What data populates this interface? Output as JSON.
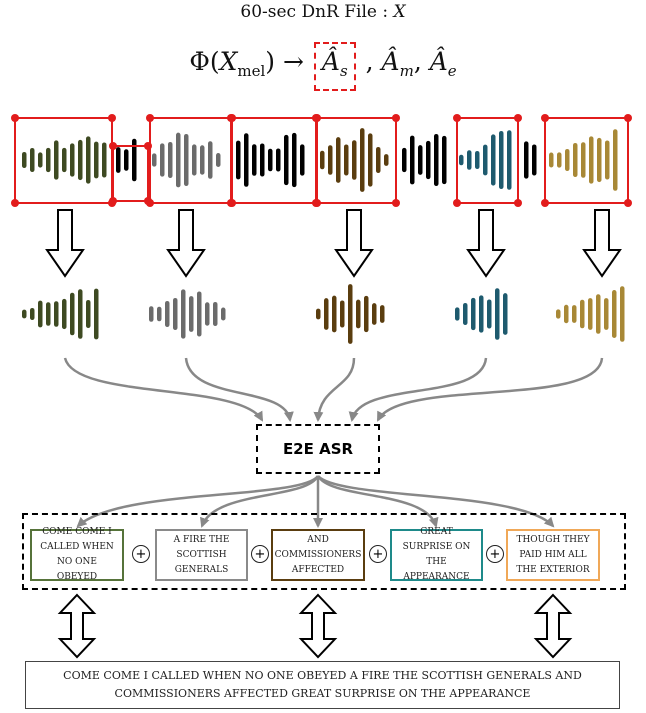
{
  "header": {
    "file_label": "60-sec DnR File : ",
    "file_var": "X"
  },
  "formula": {
    "phi": "Φ(",
    "x": "X",
    "x_sub": "mel",
    "close_arrow": ") → ",
    "highlighted_hat": "Â",
    "highlighted_sub": "s",
    "comma1": " , ",
    "m_hat": "Â",
    "m_sub": "m",
    "comma2": ", ",
    "e_hat": "Â",
    "e_sub": "e",
    "highlight_color": "#e21c1c"
  },
  "colors": {
    "olive": "#3e4a22",
    "gray": "#6b6b6b",
    "brown": "#5a3d0f",
    "teal": "#1e5a6e",
    "gold": "#a88836",
    "black": "#000000",
    "red": "#e21c1c",
    "arrow_gray": "#888888"
  },
  "asr": {
    "label": "E2E ASR"
  },
  "segments": [
    {
      "text": "COME COME I CALLED WHEN NO ONE OBEYED",
      "border": "#56733a"
    },
    {
      "text": "A FIRE THE SCOTTISH GENERALS",
      "border": "#8a8a8a"
    },
    {
      "text": "AND COMMISSIONERS AFFECTED",
      "border": "#5a3d0f"
    },
    {
      "text": "GREAT SURPRISE ON THE APPEARANCE",
      "border": "#1e8a8a"
    },
    {
      "text": "THOUGH THEY PAID HIM ALL THE EXTERIOR",
      "border": "#f0a858"
    }
  ],
  "plus_symbol": "+",
  "final_transcript": "COME COME I CALLED WHEN NO ONE OBEYED A FIRE THE SCOTTISH GENERALS AND COMMISSIONERS AFFECTED GREAT SURPRISE ON THE APPEARANCE"
}
